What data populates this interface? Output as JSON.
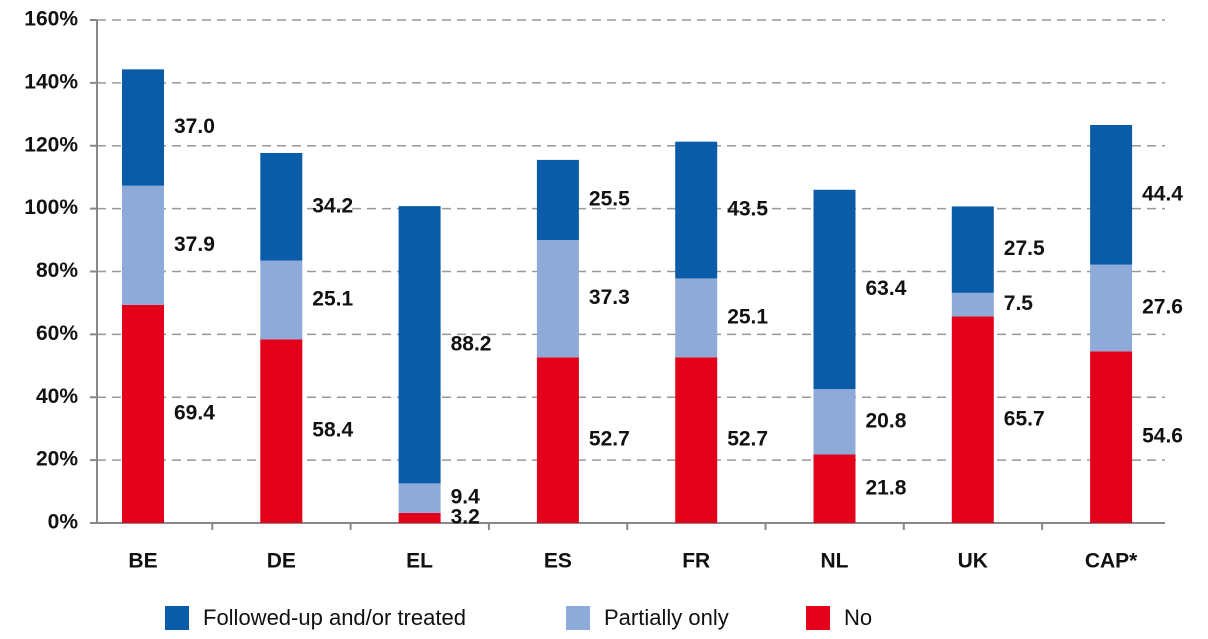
{
  "chart_data": {
    "type": "stacked_bar",
    "categories": [
      "BE",
      "DE",
      "EL",
      "ES",
      "FR",
      "NL",
      "UK",
      "CAP*"
    ],
    "series": [
      {
        "name": "No",
        "color": "#e2001a",
        "values": [
          69.4,
          58.4,
          3.2,
          52.7,
          52.7,
          21.8,
          65.7,
          54.6
        ]
      },
      {
        "name": "Partially only",
        "color": "#8eaad8",
        "values": [
          37.9,
          25.1,
          9.4,
          37.3,
          25.1,
          20.8,
          7.5,
          27.6
        ]
      },
      {
        "name": "Followed-up and/or treated",
        "color": "#0a5ca8",
        "values": [
          37.0,
          34.2,
          88.2,
          25.5,
          43.5,
          63.4,
          27.5,
          44.4
        ],
        "value_labels": [
          "37.0",
          "34.2",
          "88.2",
          "25.5",
          "43.5",
          "63.4",
          "27.5",
          "44.4"
        ]
      }
    ],
    "legend_order": [
      2,
      1,
      0
    ],
    "ylim": [
      0,
      160
    ],
    "yticks": [
      {
        "value": 0,
        "label": "0%"
      },
      {
        "value": 20,
        "label": "20%"
      },
      {
        "value": 40,
        "label": "40%"
      },
      {
        "value": 60,
        "label": "60%"
      },
      {
        "value": 80,
        "label": "80%"
      },
      {
        "value": 100,
        "label": "100%"
      },
      {
        "value": 120,
        "label": "120%"
      },
      {
        "value": 140,
        "label": "140%"
      },
      {
        "value": 160,
        "label": "160%"
      }
    ],
    "grid": true,
    "legend": "bottom"
  }
}
